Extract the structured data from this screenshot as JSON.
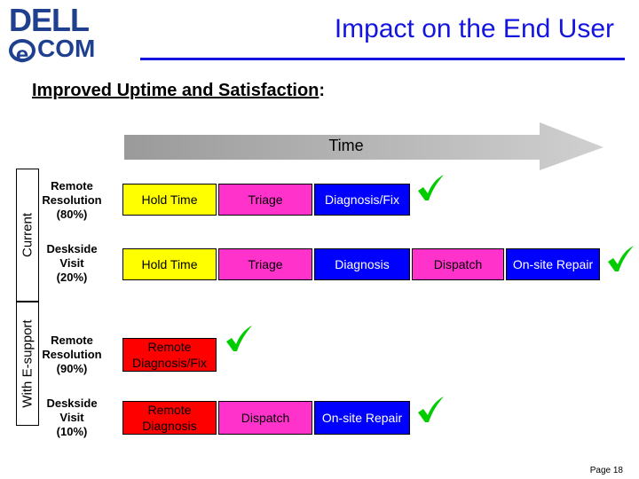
{
  "logo": {
    "line1": "DELL",
    "e": "e",
    "line2": "COM"
  },
  "header": {
    "title": "Impact on the End User"
  },
  "subtitle": {
    "text": "Improved Uptime and Satisfaction",
    "suffix": ":"
  },
  "time_label": "Time",
  "groups": [
    {
      "label": "Current",
      "rows": [
        {
          "label_line1": "Remote",
          "label_line2": "Resolution",
          "label_line3": "(80%)",
          "steps": [
            "Hold Time",
            "Triage",
            "Diagnosis/Fix"
          ]
        },
        {
          "label_line1": "Deskside",
          "label_line2": "Visit",
          "label_line3": "(20%)",
          "steps": [
            "Hold Time",
            "Triage",
            "Diagnosis",
            "Dispatch",
            "On-site Repair"
          ]
        }
      ]
    },
    {
      "label": "With E-support",
      "rows": [
        {
          "label_line1": "Remote",
          "label_line2": "Resolution",
          "label_line3": "(90%)",
          "steps": [
            "Remote Diagnosis/Fix"
          ]
        },
        {
          "label_line1": "Deskside",
          "label_line2": "Visit",
          "label_line3": "(10%)",
          "steps": [
            "Remote Diagnosis",
            "Dispatch",
            "On-site Repair"
          ]
        }
      ]
    }
  ],
  "colors": {
    "hold": "#ffff00",
    "triage": "#ff33cc",
    "diagnosis": "#0000ff",
    "remote": "#ff0000",
    "check": "#00cc00",
    "arrow": "#c0c0c0",
    "title": "#1414e0"
  },
  "footer": {
    "page": "Page 18"
  }
}
